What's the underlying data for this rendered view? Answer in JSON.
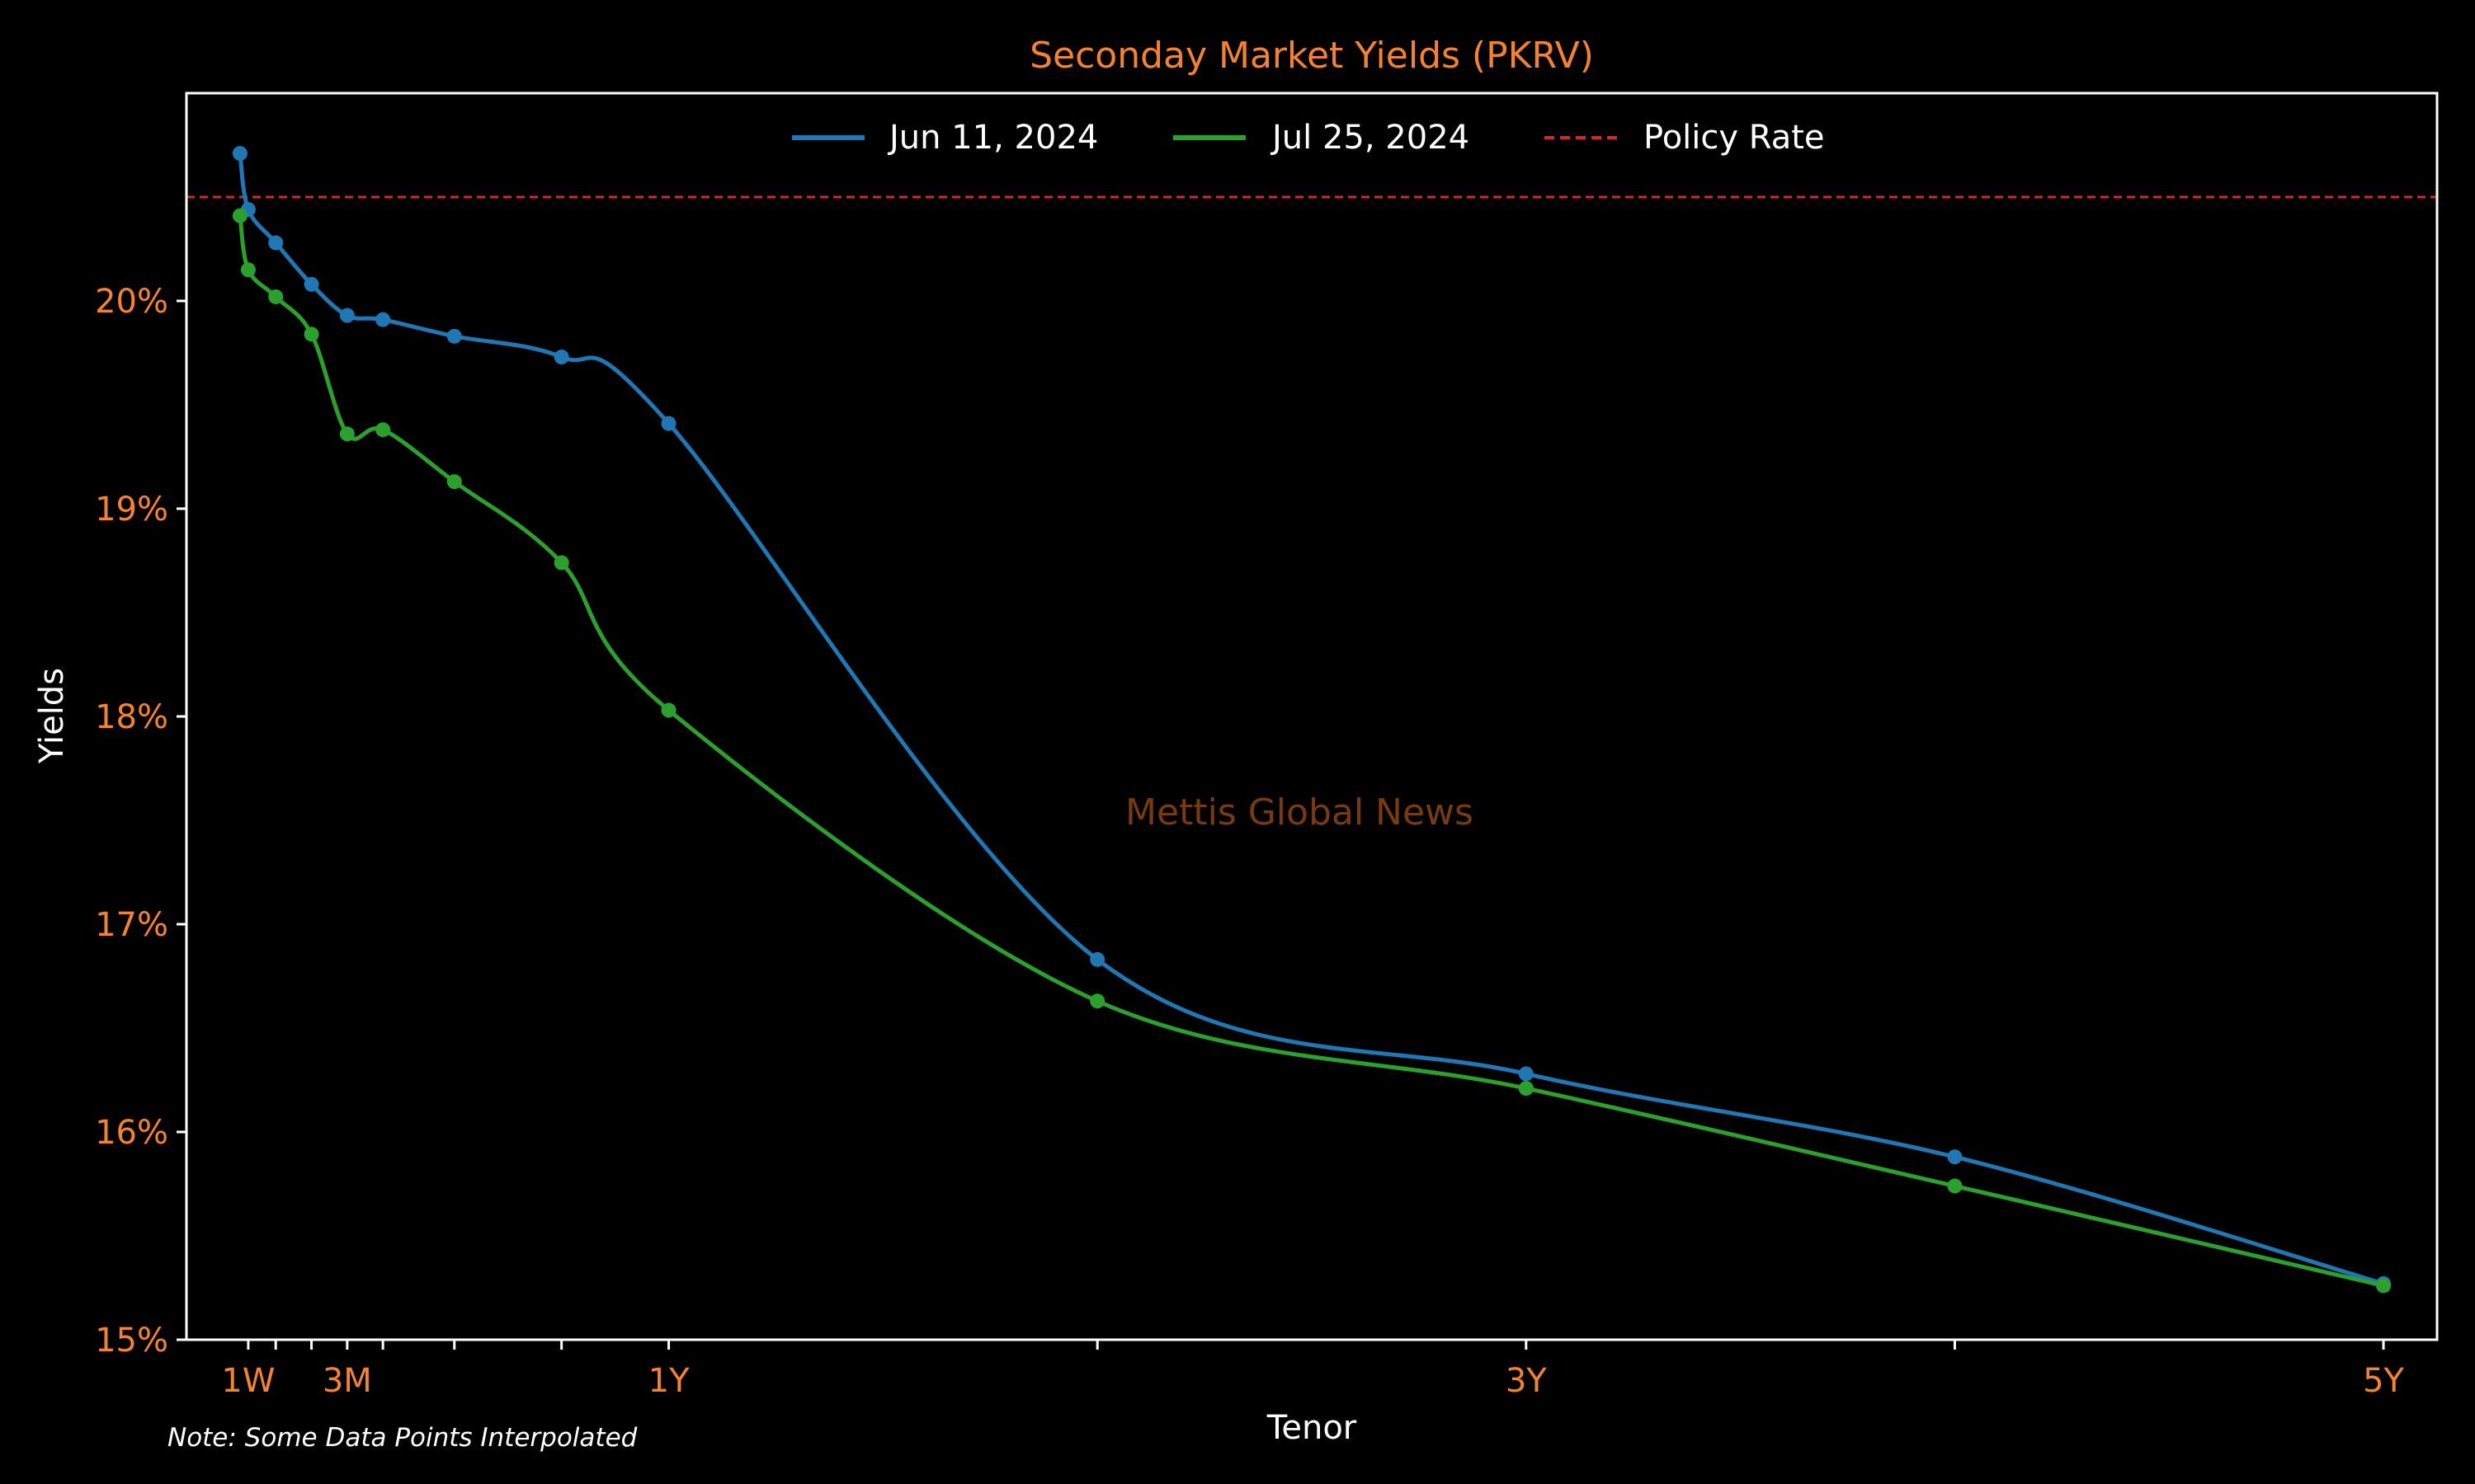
{
  "chart_data": {
    "type": "line",
    "title": "Seconday Market Yields (PKRV)",
    "xlabel": "Tenor",
    "ylabel": "Yields",
    "note": "Note: Some Data Points Interpolated",
    "watermark": "Mettis Global News",
    "x_unit": "years",
    "xlim": [
      -0.125,
      5.125
    ],
    "ylim": [
      15,
      21
    ],
    "y_ticks": [
      15,
      16,
      17,
      18,
      19,
      20
    ],
    "y_tick_suffix": "%",
    "x_ticks": [
      {
        "x": 0.0192,
        "label": "1W"
      },
      {
        "x": 0.0833,
        "label": ""
      },
      {
        "x": 0.1667,
        "label": ""
      },
      {
        "x": 0.25,
        "label": "3M"
      },
      {
        "x": 0.3333,
        "label": ""
      },
      {
        "x": 0.5,
        "label": ""
      },
      {
        "x": 0.75,
        "label": ""
      },
      {
        "x": 1,
        "label": "1Y"
      },
      {
        "x": 2,
        "label": ""
      },
      {
        "x": 3,
        "label": "3Y"
      },
      {
        "x": 4,
        "label": ""
      },
      {
        "x": 5,
        "label": "5Y"
      }
    ],
    "series": [
      {
        "name": "Jun 11, 2024",
        "color": "#1f77b4",
        "x": [
          0.0,
          0.0192,
          0.0833,
          0.1667,
          0.25,
          0.3333,
          0.5,
          0.75,
          1,
          2,
          3,
          4,
          5
        ],
        "values": [
          20.71,
          20.44,
          20.28,
          20.08,
          19.93,
          19.91,
          19.83,
          19.73,
          19.41,
          16.83,
          16.28,
          15.88,
          15.27
        ]
      },
      {
        "name": "Jul 25, 2024",
        "color": "#2ca02c",
        "x": [
          0.0,
          0.0192,
          0.0833,
          0.1667,
          0.25,
          0.3333,
          0.5,
          0.75,
          1,
          2,
          3,
          4,
          5
        ],
        "values": [
          20.41,
          20.15,
          20.02,
          19.84,
          19.36,
          19.38,
          19.13,
          18.74,
          18.03,
          16.63,
          16.21,
          15.74,
          15.26
        ]
      }
    ],
    "policy_rate": {
      "name": "Policy Rate",
      "value": 20.5,
      "color": "#d62728"
    },
    "legend_placement": "top-center",
    "grid": false,
    "colors": {
      "background": "#000000",
      "tick_label": "#f58231",
      "title": "#f58231",
      "text": "#ffffff",
      "watermark": "#7a3a10"
    }
  }
}
